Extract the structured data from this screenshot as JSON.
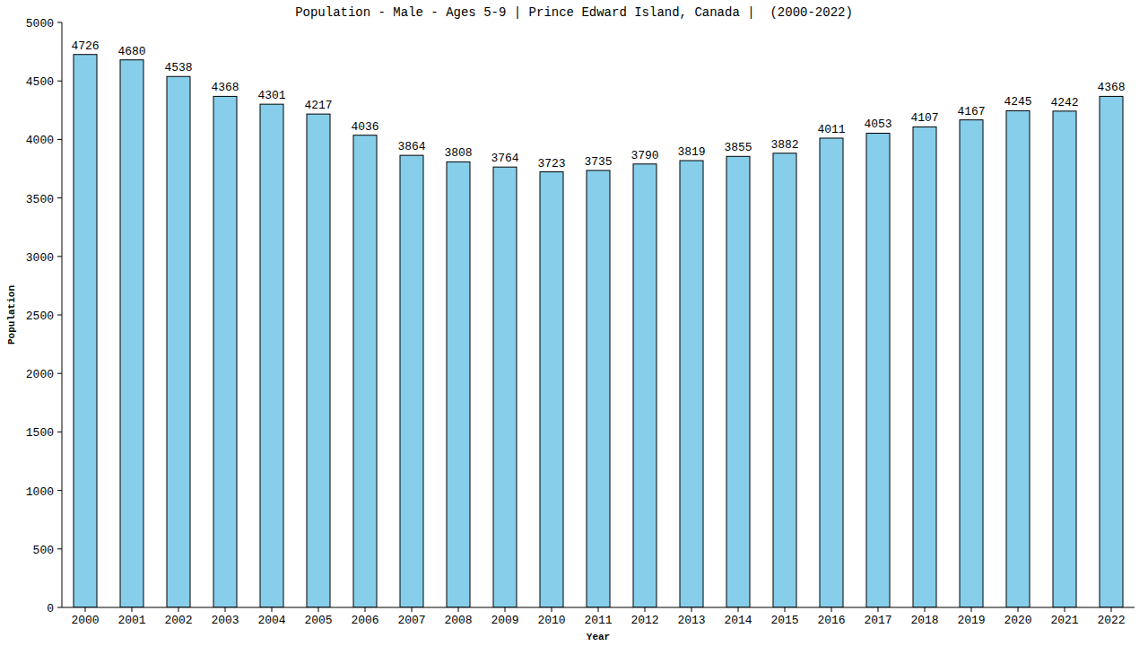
{
  "chart_data": {
    "type": "bar",
    "title": "Population - Male - Ages 5-9 | Prince Edward Island, Canada |  (2000-2022)",
    "x_label": "Year",
    "y_label": "Population",
    "categories": [
      "2000",
      "2001",
      "2002",
      "2003",
      "2004",
      "2005",
      "2006",
      "2007",
      "2008",
      "2009",
      "2010",
      "2011",
      "2012",
      "2013",
      "2014",
      "2015",
      "2016",
      "2017",
      "2018",
      "2019",
      "2020",
      "2021",
      "2022"
    ],
    "values": [
      4726,
      4680,
      4538,
      4368,
      4301,
      4217,
      4036,
      3864,
      3808,
      3764,
      3723,
      3735,
      3790,
      3819,
      3855,
      3882,
      4011,
      4053,
      4107,
      4167,
      4245,
      4242,
      4368
    ],
    "color": "#87ceeb",
    "ylim": [
      0,
      5000
    ],
    "yticks": [
      0,
      500,
      1000,
      1500,
      2000,
      2500,
      3000,
      3500,
      4000,
      4500,
      5000
    ],
    "grid": false,
    "data_labels": true
  }
}
